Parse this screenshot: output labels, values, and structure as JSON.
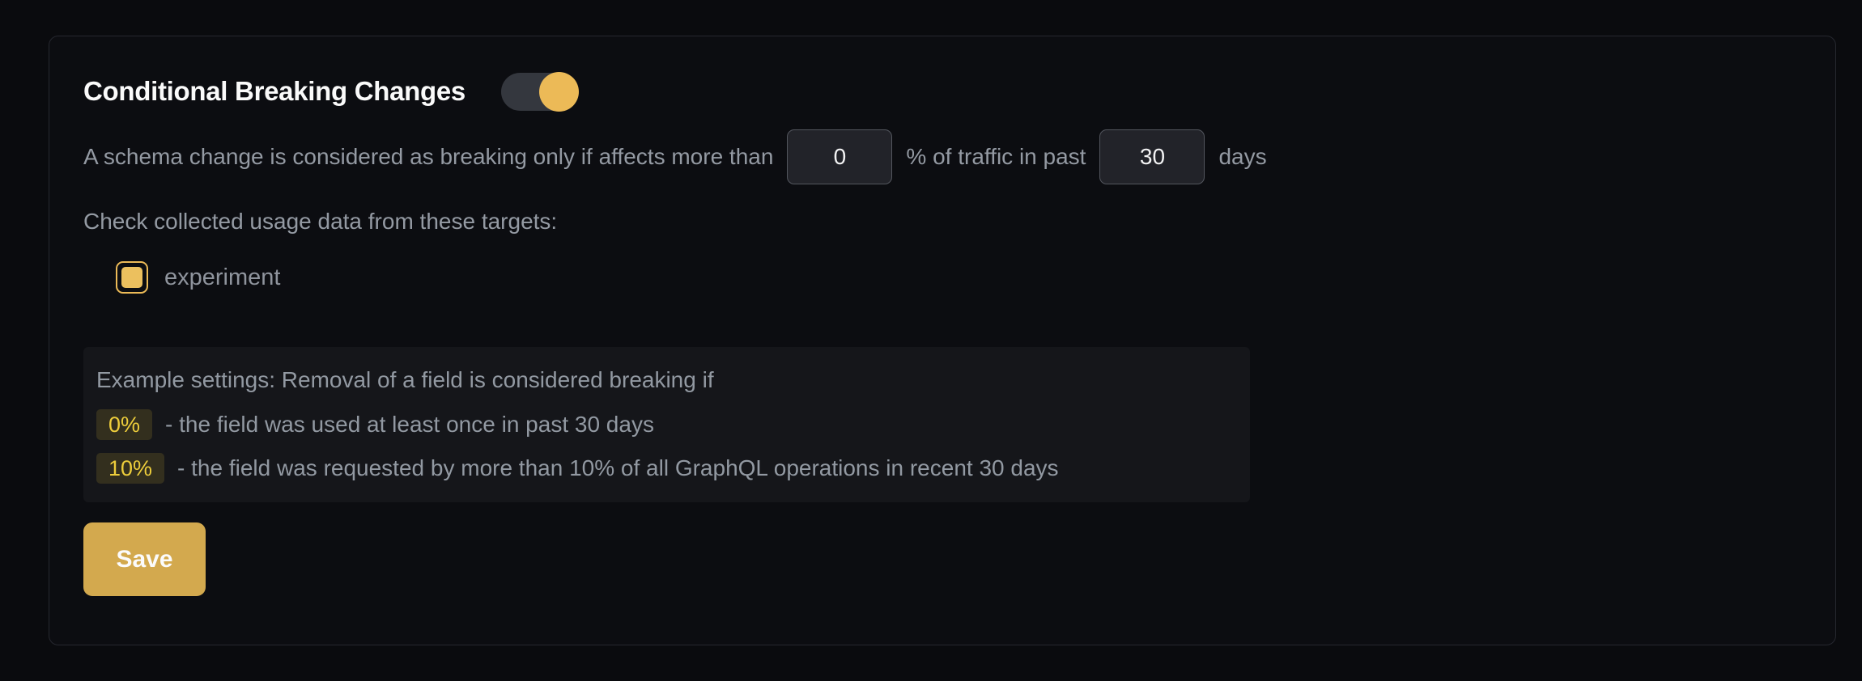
{
  "theme": {
    "page_bg": "#0a0b0e",
    "card_bg": "#0c0d11",
    "card_border": "#26282f",
    "accent": "#ecba57",
    "save_bg": "#d3a94e",
    "muted_text": "#949aa3",
    "badge_bg": "#332f1e",
    "badge_text": "#edcd3b",
    "input_bg": "#222329",
    "input_border": "#53565e",
    "example_bg": "#15161a"
  },
  "panel": {
    "title": "Conditional Breaking Changes",
    "toggle": {
      "name": "conditional-breaking-changes-enabled",
      "state": "on"
    },
    "threshold": {
      "prefix": "A schema change is considered as breaking only if affects more than",
      "percentage_value": "0",
      "middle": "% of traffic in past",
      "days_value": "30",
      "suffix": "days"
    },
    "targets": {
      "label": "Check collected usage data from these targets:",
      "items": [
        {
          "name": "experiment",
          "checked": true
        }
      ]
    },
    "example": {
      "intro": "Example settings: Removal of a field is considered breaking if",
      "rules": [
        {
          "badge": "0%",
          "text": "- the field was used at least once in past 30 days"
        },
        {
          "badge": "10%",
          "text": "- the field was requested by more than 10% of all GraphQL operations in recent 30 days"
        }
      ]
    },
    "save_label": "Save"
  }
}
